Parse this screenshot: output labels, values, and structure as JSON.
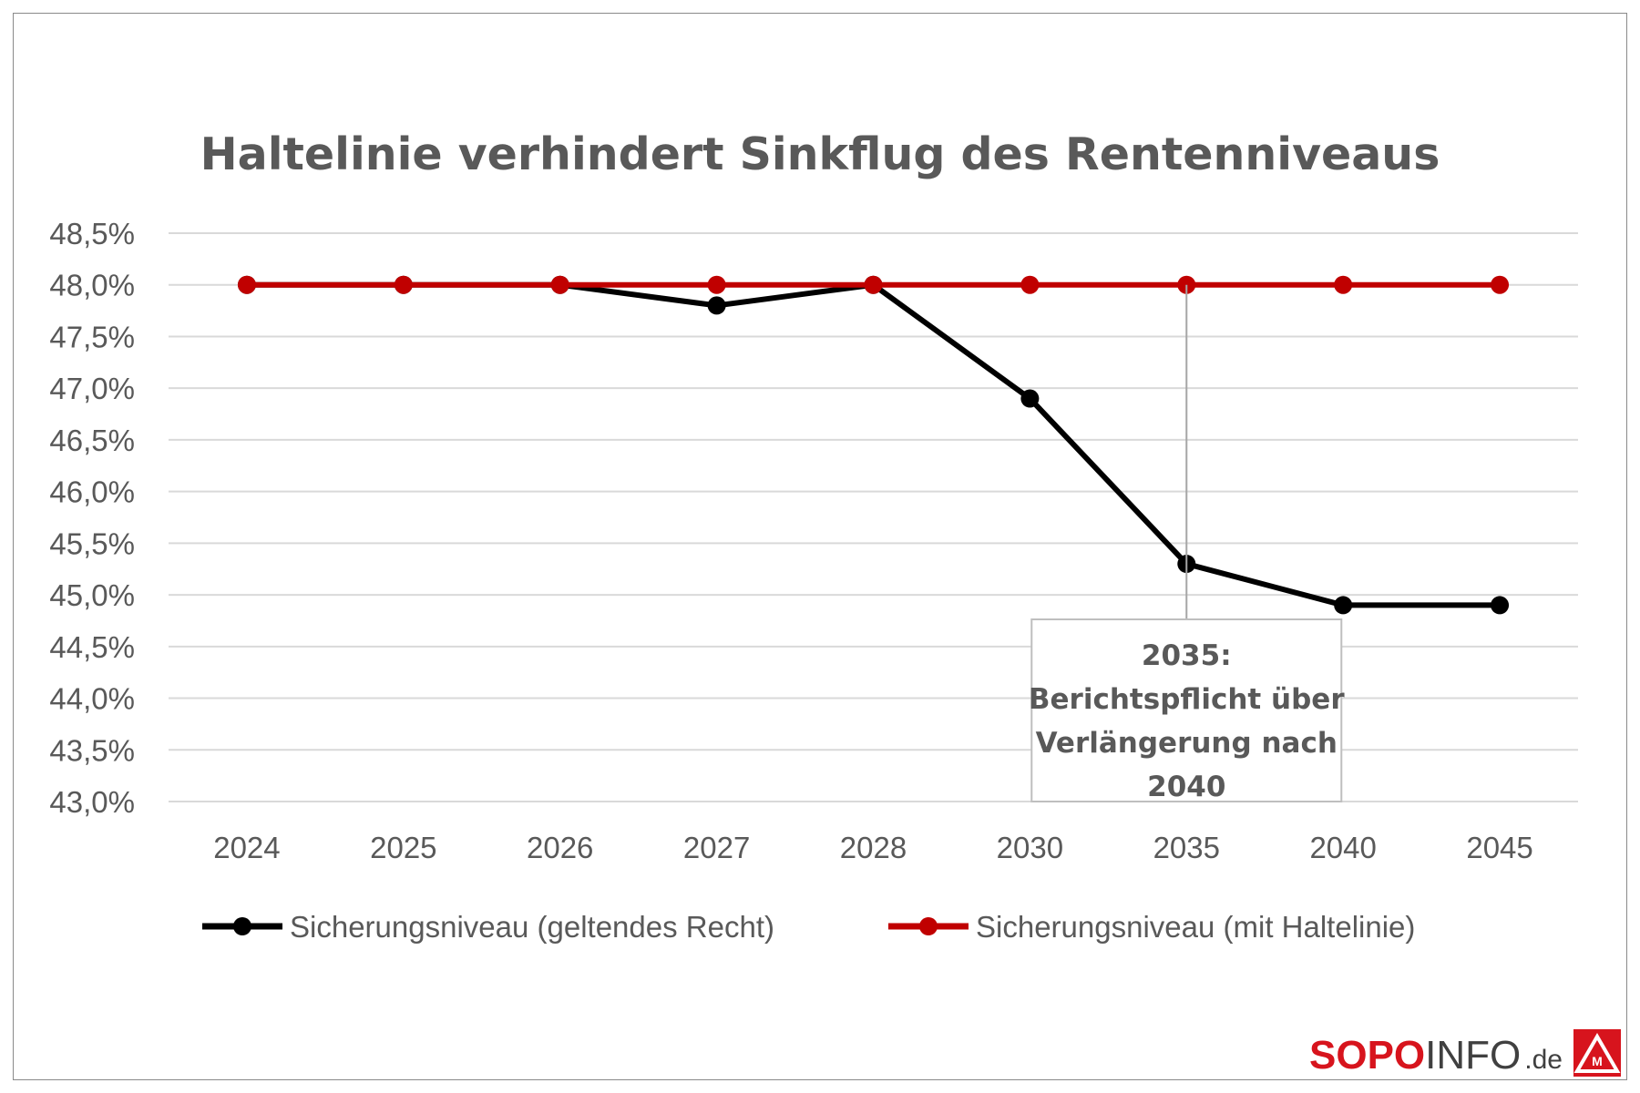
{
  "chart_data": {
    "type": "line",
    "title": "Haltelinie verhindert Sinkflug des Rentenniveaus",
    "categories": [
      "2024",
      "2025",
      "2026",
      "2027",
      "2028",
      "2030",
      "2035",
      "2040",
      "2045"
    ],
    "y_tick_labels": [
      "48,5%",
      "48,0%",
      "47,5%",
      "47,0%",
      "46,5%",
      "46,0%",
      "45,5%",
      "45,0%",
      "44,5%",
      "44,0%",
      "43,5%",
      "43,0%"
    ],
    "y_ticks": [
      48.5,
      48.0,
      47.5,
      47.0,
      46.5,
      46.0,
      45.5,
      45.0,
      44.5,
      44.0,
      43.5,
      43.0
    ],
    "ylim": [
      43.0,
      48.5
    ],
    "grid": true,
    "legend_position": "bottom",
    "series": [
      {
        "name": "Sicherungsniveau (geltendes Recht)",
        "color": "#000000",
        "values": [
          48.0,
          48.0,
          48.0,
          47.8,
          48.0,
          46.9,
          45.3,
          44.9,
          44.9
        ]
      },
      {
        "name": "Sicherungsniveau (mit Haltelinie)",
        "color": "#c00000",
        "values": [
          48.0,
          48.0,
          48.0,
          48.0,
          48.0,
          48.0,
          48.0,
          48.0,
          48.0
        ]
      }
    ],
    "annotation": {
      "lines": [
        "2035:",
        "Berichtspflicht über",
        "Verlängerung nach",
        "2040"
      ],
      "category": "2035"
    }
  },
  "branding": {
    "sopo": "SOPO",
    "info": "INFO",
    "de": ".de",
    "logo_color": "#d7141d"
  }
}
